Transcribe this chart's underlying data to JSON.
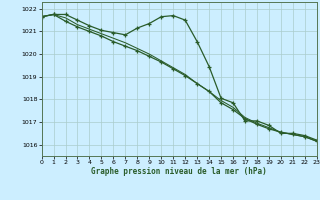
{
  "title": "Graphe pression niveau de la mer (hPa)",
  "background_color": "#cceeff",
  "grid_color": "#aacccc",
  "line_color": "#2a5c2a",
  "xlim": [
    0,
    23
  ],
  "ylim": [
    1015.5,
    1022.3
  ],
  "yticks": [
    1016,
    1017,
    1018,
    1019,
    1020,
    1021,
    1022
  ],
  "xticks": [
    0,
    1,
    2,
    3,
    4,
    5,
    6,
    7,
    8,
    9,
    10,
    11,
    12,
    13,
    14,
    15,
    16,
    17,
    18,
    19,
    20,
    21,
    22,
    23
  ],
  "series1_x": [
    0,
    1,
    2,
    3,
    4,
    5,
    6,
    7,
    8,
    9,
    10,
    11,
    12,
    13,
    14,
    15,
    16,
    17,
    18,
    19,
    20,
    21,
    22,
    23
  ],
  "series1_y": [
    1021.65,
    1021.75,
    1021.75,
    1021.5,
    1021.25,
    1021.05,
    1020.95,
    1020.85,
    1021.15,
    1021.35,
    1021.65,
    1021.7,
    1021.5,
    1020.55,
    1019.45,
    1018.05,
    1017.85,
    1017.05,
    1017.05,
    1016.85,
    1016.5,
    1016.5,
    1016.4,
    1016.2
  ],
  "series2_x": [
    0,
    1,
    2,
    3,
    4,
    5,
    6,
    7,
    8,
    9,
    10,
    11,
    12,
    13,
    14,
    15,
    16,
    17,
    18,
    19,
    20,
    21,
    22,
    23
  ],
  "series2_y": [
    1021.65,
    1021.75,
    1021.45,
    1021.2,
    1021.0,
    1020.8,
    1020.55,
    1020.35,
    1020.15,
    1019.9,
    1019.65,
    1019.35,
    1019.05,
    1018.7,
    1018.35,
    1017.85,
    1017.55,
    1017.15,
    1016.9,
    1016.7,
    1016.55,
    1016.45,
    1016.35,
    1016.15
  ],
  "series3_x": [
    0,
    1,
    2,
    3,
    4,
    5,
    6,
    7,
    8,
    9,
    10,
    11,
    12,
    13,
    14,
    15,
    16,
    17,
    18,
    19,
    20,
    21,
    22,
    23
  ],
  "series3_y": [
    1021.65,
    1021.75,
    1021.6,
    1021.3,
    1021.1,
    1020.9,
    1020.7,
    1020.5,
    1020.25,
    1020.0,
    1019.7,
    1019.4,
    1019.1,
    1018.7,
    1018.35,
    1017.95,
    1017.65,
    1017.2,
    1016.95,
    1016.75,
    1016.55,
    1016.45,
    1016.35,
    1016.15
  ]
}
